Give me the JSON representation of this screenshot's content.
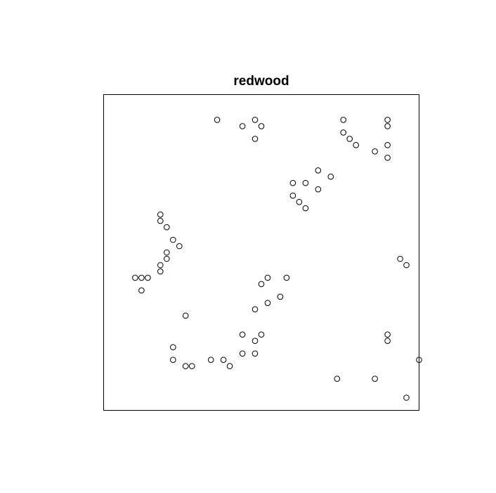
{
  "chart_data": {
    "type": "scatter",
    "title": "redwood",
    "xlabel": "",
    "ylabel": "",
    "xlim": [
      0,
      1
    ],
    "ylim": [
      0,
      1
    ],
    "grid": false,
    "axes": false,
    "marker": "open-circle",
    "colors": {
      "marker_stroke": "#000000",
      "frame": "#000000",
      "background": "#ffffff"
    },
    "points": [
      [
        0.36,
        0.92
      ],
      [
        0.44,
        0.9
      ],
      [
        0.48,
        0.92
      ],
      [
        0.5,
        0.9
      ],
      [
        0.48,
        0.86
      ],
      [
        0.76,
        0.92
      ],
      [
        0.9,
        0.92
      ],
      [
        0.9,
        0.9
      ],
      [
        0.76,
        0.88
      ],
      [
        0.78,
        0.86
      ],
      [
        0.8,
        0.84
      ],
      [
        0.86,
        0.82
      ],
      [
        0.9,
        0.84
      ],
      [
        0.9,
        0.8
      ],
      [
        0.68,
        0.76
      ],
      [
        0.72,
        0.74
      ],
      [
        0.64,
        0.72
      ],
      [
        0.68,
        0.7
      ],
      [
        0.6,
        0.72
      ],
      [
        0.6,
        0.68
      ],
      [
        0.62,
        0.66
      ],
      [
        0.64,
        0.64
      ],
      [
        0.18,
        0.62
      ],
      [
        0.18,
        0.6
      ],
      [
        0.2,
        0.58
      ],
      [
        0.22,
        0.54
      ],
      [
        0.24,
        0.52
      ],
      [
        0.2,
        0.5
      ],
      [
        0.2,
        0.48
      ],
      [
        0.18,
        0.46
      ],
      [
        0.18,
        0.44
      ],
      [
        0.1,
        0.42
      ],
      [
        0.12,
        0.42
      ],
      [
        0.14,
        0.42
      ],
      [
        0.12,
        0.38
      ],
      [
        0.94,
        0.48
      ],
      [
        0.96,
        0.46
      ],
      [
        0.52,
        0.42
      ],
      [
        0.58,
        0.42
      ],
      [
        0.5,
        0.4
      ],
      [
        0.56,
        0.36
      ],
      [
        0.52,
        0.34
      ],
      [
        0.48,
        0.32
      ],
      [
        0.26,
        0.3
      ],
      [
        0.44,
        0.24
      ],
      [
        0.5,
        0.24
      ],
      [
        0.48,
        0.22
      ],
      [
        0.9,
        0.24
      ],
      [
        0.9,
        0.22
      ],
      [
        0.22,
        0.2
      ],
      [
        0.44,
        0.18
      ],
      [
        0.48,
        0.18
      ],
      [
        0.22,
        0.16
      ],
      [
        0.34,
        0.16
      ],
      [
        0.38,
        0.16
      ],
      [
        1.0,
        0.16
      ],
      [
        0.26,
        0.14
      ],
      [
        0.28,
        0.14
      ],
      [
        0.4,
        0.14
      ],
      [
        0.74,
        0.1
      ],
      [
        0.86,
        0.1
      ],
      [
        0.96,
        0.04
      ]
    ]
  }
}
